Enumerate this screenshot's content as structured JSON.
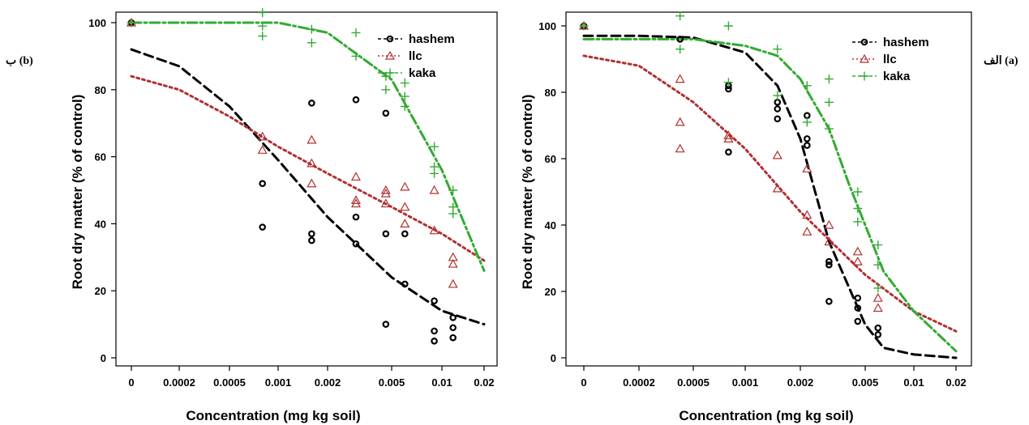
{
  "chart_data": [
    {
      "panel_tag": "ب (b)",
      "type": "scatter",
      "ylabel": "Root dry matter (% of control)",
      "xlabel": "Concentration (mg kg soil)",
      "x_scale": "log",
      "xlim": [
        0,
        0.02
      ],
      "ylim": [
        0,
        100
      ],
      "x_ticks": [
        "0",
        "0.0002",
        "0.0005",
        "0.001",
        "0.002",
        "0.005",
        "0.01",
        "0.02"
      ],
      "y_ticks": [
        "0",
        "20",
        "40",
        "60",
        "80",
        "100"
      ],
      "legend": [
        "hashem",
        "llc",
        "kaka"
      ],
      "legend_position": "top-right",
      "series": [
        {
          "name": "hashem",
          "color": "#000000",
          "marker": "circle",
          "points": [
            [
              0,
              100
            ],
            [
              0.0008,
              52
            ],
            [
              0.0008,
              39
            ],
            [
              0.0016,
              76
            ],
            [
              0.0016,
              37
            ],
            [
              0.0016,
              35
            ],
            [
              0.003,
              77
            ],
            [
              0.003,
              42
            ],
            [
              0.003,
              34
            ],
            [
              0.0046,
              73
            ],
            [
              0.0046,
              37
            ],
            [
              0.0046,
              10
            ],
            [
              0.006,
              37
            ],
            [
              0.006,
              22
            ],
            [
              0.009,
              17
            ],
            [
              0.009,
              8
            ],
            [
              0.009,
              5
            ],
            [
              0.012,
              12
            ],
            [
              0.012,
              9
            ],
            [
              0.012,
              6
            ]
          ],
          "curve": [
            [
              0,
              92
            ],
            [
              0.0002,
              87
            ],
            [
              0.0005,
              75
            ],
            [
              0.001,
              59
            ],
            [
              0.002,
              42
            ],
            [
              0.005,
              24
            ],
            [
              0.01,
              14
            ],
            [
              0.02,
              10
            ]
          ]
        },
        {
          "name": "llc",
          "color": "#b03030",
          "marker": "triangle",
          "points": [
            [
              0,
              100
            ],
            [
              0.0008,
              66
            ],
            [
              0.0008,
              62
            ],
            [
              0.0016,
              65
            ],
            [
              0.0016,
              58
            ],
            [
              0.0016,
              52
            ],
            [
              0.003,
              54
            ],
            [
              0.003,
              47
            ],
            [
              0.003,
              46
            ],
            [
              0.0046,
              50
            ],
            [
              0.0046,
              49
            ],
            [
              0.0046,
              46
            ],
            [
              0.006,
              51
            ],
            [
              0.006,
              45
            ],
            [
              0.006,
              40
            ],
            [
              0.009,
              50
            ],
            [
              0.009,
              38
            ],
            [
              0.012,
              30
            ],
            [
              0.012,
              28
            ],
            [
              0.012,
              22
            ]
          ],
          "curve": [
            [
              0,
              84
            ],
            [
              0.0002,
              80
            ],
            [
              0.0005,
              72
            ],
            [
              0.001,
              63
            ],
            [
              0.002,
              55
            ],
            [
              0.005,
              45
            ],
            [
              0.01,
              37
            ],
            [
              0.02,
              29
            ]
          ]
        },
        {
          "name": "kaka",
          "color": "#33aa33",
          "marker": "plus",
          "points": [
            [
              0,
              100
            ],
            [
              0.0008,
              103
            ],
            [
              0.0008,
              99
            ],
            [
              0.0008,
              96
            ],
            [
              0.0016,
              98
            ],
            [
              0.0016,
              94
            ],
            [
              0.003,
              97
            ],
            [
              0.003,
              90
            ],
            [
              0.0046,
              84
            ],
            [
              0.0046,
              80
            ],
            [
              0.006,
              82
            ],
            [
              0.006,
              78
            ],
            [
              0.006,
              75
            ],
            [
              0.009,
              63
            ],
            [
              0.009,
              57
            ],
            [
              0.009,
              55
            ],
            [
              0.012,
              50
            ],
            [
              0.012,
              45
            ],
            [
              0.012,
              43
            ]
          ],
          "curve": [
            [
              0,
              100
            ],
            [
              0.0002,
              100
            ],
            [
              0.0005,
              100
            ],
            [
              0.001,
              100
            ],
            [
              0.002,
              97
            ],
            [
              0.005,
              83
            ],
            [
              0.01,
              56
            ],
            [
              0.02,
              26
            ]
          ]
        }
      ]
    },
    {
      "panel_tag": "الف (a)",
      "type": "scatter",
      "ylabel": "Root dry matter (% of control)",
      "xlabel": "Concentration (mg kg soil)",
      "x_scale": "log",
      "xlim": [
        0,
        0.02
      ],
      "ylim": [
        0,
        100
      ],
      "x_ticks": [
        "0",
        "0.0002",
        "0.0005",
        "0.001",
        "0.002",
        "0.005",
        "0.01",
        "0.02"
      ],
      "y_ticks": [
        "0",
        "20",
        "40",
        "60",
        "80",
        "100"
      ],
      "legend": [
        "hashem",
        "llc",
        "kaka"
      ],
      "legend_position": "top-right",
      "series": [
        {
          "name": "hashem",
          "color": "#000000",
          "marker": "circle",
          "points": [
            [
              0,
              100
            ],
            [
              0.0004,
              96
            ],
            [
              0.0008,
              82
            ],
            [
              0.0008,
              81
            ],
            [
              0.0008,
              62
            ],
            [
              0.0015,
              77
            ],
            [
              0.0015,
              75
            ],
            [
              0.0015,
              72
            ],
            [
              0.0022,
              73
            ],
            [
              0.0022,
              66
            ],
            [
              0.0022,
              64
            ],
            [
              0.003,
              29
            ],
            [
              0.003,
              28
            ],
            [
              0.003,
              17
            ],
            [
              0.0045,
              18
            ],
            [
              0.0045,
              15
            ],
            [
              0.0045,
              11
            ],
            [
              0.006,
              9
            ],
            [
              0.006,
              7
            ]
          ],
          "curve": [
            [
              0,
              97
            ],
            [
              0.0002,
              97
            ],
            [
              0.0005,
              96.5
            ],
            [
              0.001,
              92
            ],
            [
              0.0015,
              82
            ],
            [
              0.002,
              66
            ],
            [
              0.003,
              35
            ],
            [
              0.005,
              10
            ],
            [
              0.0065,
              3
            ],
            [
              0.01,
              1
            ],
            [
              0.02,
              0
            ]
          ]
        },
        {
          "name": "llc",
          "color": "#b03030",
          "marker": "triangle",
          "points": [
            [
              0,
              100
            ],
            [
              0.0004,
              84
            ],
            [
              0.0004,
              71
            ],
            [
              0.0004,
              63
            ],
            [
              0.0008,
              67
            ],
            [
              0.0008,
              66
            ],
            [
              0.0015,
              61
            ],
            [
              0.0015,
              51
            ],
            [
              0.0022,
              57
            ],
            [
              0.0022,
              43
            ],
            [
              0.0022,
              38
            ],
            [
              0.003,
              40
            ],
            [
              0.003,
              35
            ],
            [
              0.0045,
              32
            ],
            [
              0.0045,
              29
            ],
            [
              0.006,
              18
            ],
            [
              0.006,
              15
            ]
          ],
          "curve": [
            [
              0,
              91
            ],
            [
              0.0002,
              88
            ],
            [
              0.0005,
              77
            ],
            [
              0.001,
              63
            ],
            [
              0.002,
              44
            ],
            [
              0.005,
              25
            ],
            [
              0.01,
              14
            ],
            [
              0.02,
              8
            ]
          ]
        },
        {
          "name": "kaka",
          "color": "#33aa33",
          "marker": "plus",
          "points": [
            [
              0,
              100
            ],
            [
              0.0004,
              103
            ],
            [
              0.0004,
              93
            ],
            [
              0.0008,
              100
            ],
            [
              0.0008,
              83
            ],
            [
              0.0015,
              93
            ],
            [
              0.0015,
              79
            ],
            [
              0.0022,
              82
            ],
            [
              0.0022,
              71
            ],
            [
              0.003,
              84
            ],
            [
              0.003,
              77
            ],
            [
              0.003,
              69
            ],
            [
              0.0045,
              50
            ],
            [
              0.0045,
              45
            ],
            [
              0.0045,
              41
            ],
            [
              0.006,
              34
            ],
            [
              0.006,
              28
            ],
            [
              0.006,
              21
            ]
          ],
          "curve": [
            [
              0,
              96
            ],
            [
              0.0002,
              96
            ],
            [
              0.0005,
              96
            ],
            [
              0.001,
              94
            ],
            [
              0.0015,
              91
            ],
            [
              0.002,
              84
            ],
            [
              0.003,
              69
            ],
            [
              0.004,
              52
            ],
            [
              0.005,
              40
            ],
            [
              0.0065,
              26
            ],
            [
              0.01,
              14
            ],
            [
              0.02,
              2
            ]
          ]
        }
      ]
    }
  ]
}
